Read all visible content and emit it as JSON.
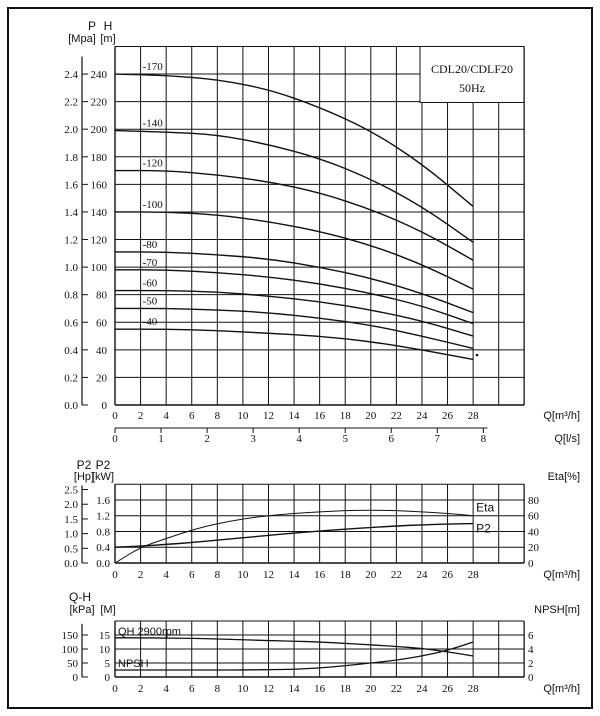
{
  "chart_data": [
    {
      "type": "line",
      "title": "CDL20/CDLF20",
      "subtitle": "50Hz",
      "xlabel": "Q[m³/h]",
      "xlabel2": "Q[l/s]",
      "ylabel_left": "P",
      "ylabel_left_unit": "[Mpa]",
      "ylabel": "H",
      "ylabel_unit": "[m]",
      "xlim": [
        0,
        32
      ],
      "ylim": [
        0,
        260
      ],
      "x_ticks": [
        0,
        2,
        4,
        6,
        8,
        10,
        12,
        14,
        16,
        18,
        20,
        22,
        24,
        26,
        28
      ],
      "x2_ticks": [
        0,
        1,
        2,
        3,
        4,
        5,
        6,
        7,
        8
      ],
      "y_ticks": [
        0,
        20,
        40,
        60,
        80,
        100,
        120,
        140,
        160,
        180,
        200,
        220,
        240
      ],
      "p_ticks": [
        "0.0",
        "0.2",
        "0.4",
        "0.6",
        "0.8",
        "1.0",
        "1.2",
        "1.4",
        "1.6",
        "1.8",
        "2.0",
        "2.2",
        "2.4"
      ],
      "grid": true,
      "x": [
        0,
        4,
        8,
        12,
        16,
        20,
        24,
        28
      ],
      "series": [
        {
          "name": "-170",
          "values": [
            240,
            239,
            236,
            229,
            216,
            199,
            175,
            144
          ]
        },
        {
          "name": "-140",
          "values": [
            199,
            198,
            196,
            189,
            179,
            164,
            144,
            118
          ]
        },
        {
          "name": "-120",
          "values": [
            170,
            170,
            167,
            162,
            154,
            142,
            126,
            105
          ]
        },
        {
          "name": "-100",
          "values": [
            140,
            140,
            138,
            133,
            126,
            116,
            102,
            84
          ]
        },
        {
          "name": "-80",
          "values": [
            111,
            111,
            109,
            106,
            100,
            92,
            81,
            67
          ]
        },
        {
          "name": "-70",
          "values": [
            98,
            98,
            96,
            93,
            88,
            81,
            72,
            59
          ]
        },
        {
          "name": "-60",
          "values": [
            83,
            83,
            82,
            79,
            75,
            69,
            61,
            50
          ]
        },
        {
          "name": "-50",
          "values": [
            70,
            70,
            69,
            67,
            63,
            58,
            50,
            41
          ]
        },
        {
          "name": "-40",
          "values": [
            55,
            55,
            54,
            52,
            50,
            46,
            40,
            33
          ]
        }
      ]
    },
    {
      "type": "line",
      "xlabel": "Q[m³/h]",
      "ylabel_hp": "P2",
      "ylabel_hp_unit": "[Hp]",
      "ylabel": "P2",
      "ylabel_unit": "[kW]",
      "ylabel_right": "Eta[%]",
      "xlim": [
        0,
        32
      ],
      "ylim": [
        0,
        2.0
      ],
      "x_ticks": [
        0,
        2,
        4,
        6,
        8,
        10,
        12,
        14,
        16,
        18,
        20,
        22,
        24,
        26,
        28
      ],
      "hp_ticks": [
        "0.0",
        "0.5",
        "1.0",
        "1.5",
        "2.0",
        "2.5"
      ],
      "kw_ticks": [
        "0.0",
        "0.4",
        "0.8",
        "1.2",
        "1.6"
      ],
      "eta_ticks": [
        "0",
        "20",
        "40",
        "60",
        "80"
      ],
      "grid": true,
      "x": [
        0,
        2,
        4,
        6,
        8,
        10,
        12,
        14,
        16,
        18,
        20,
        22,
        24,
        26,
        28
      ],
      "series": [
        {
          "name": "Eta",
          "axis": "right",
          "values": [
            0,
            20,
            31,
            42,
            50,
            56,
            60,
            63,
            65,
            66.5,
            67,
            66.5,
            65,
            63,
            60
          ]
        },
        {
          "name": "P2",
          "axis": "left",
          "values": [
            0.4,
            0.43,
            0.47,
            0.52,
            0.58,
            0.64,
            0.7,
            0.76,
            0.81,
            0.86,
            0.9,
            0.94,
            0.97,
            0.99,
            1.0
          ]
        }
      ]
    },
    {
      "type": "line",
      "xlabel": "Q[m³/h]",
      "ylabel_top": "Q-H",
      "ylabel_kpa": "[kPa]",
      "ylabel": "[M]",
      "ylabel_right": "NPSH[m]",
      "xlim": [
        0,
        32
      ],
      "ylim": [
        0,
        20
      ],
      "x_ticks": [
        0,
        2,
        4,
        6,
        8,
        10,
        12,
        14,
        16,
        18,
        20,
        22,
        24,
        26,
        28
      ],
      "kpa_ticks": [
        "0",
        "50",
        "100",
        "150"
      ],
      "m_ticks": [
        "0",
        "5",
        "10",
        "15"
      ],
      "npsh_ticks": [
        "0",
        "2",
        "4",
        "6"
      ],
      "grid": true,
      "x": [
        0,
        2,
        4,
        6,
        8,
        10,
        12,
        14,
        16,
        18,
        20,
        22,
        24,
        26,
        28
      ],
      "series": [
        {
          "name": "QH 2900rpm",
          "axis": "left",
          "values": [
            14,
            14,
            13.9,
            13.8,
            13.6,
            13.3,
            13,
            12.8,
            12.5,
            12,
            11.5,
            10.9,
            10.2,
            9,
            7.5
          ]
        },
        {
          "name": "NPSH",
          "axis": "right",
          "values": [
            1,
            1,
            1,
            1,
            1,
            1,
            1.05,
            1.1,
            1.3,
            1.6,
            2.0,
            2.4,
            3.0,
            3.8,
            5.0
          ]
        }
      ]
    }
  ]
}
